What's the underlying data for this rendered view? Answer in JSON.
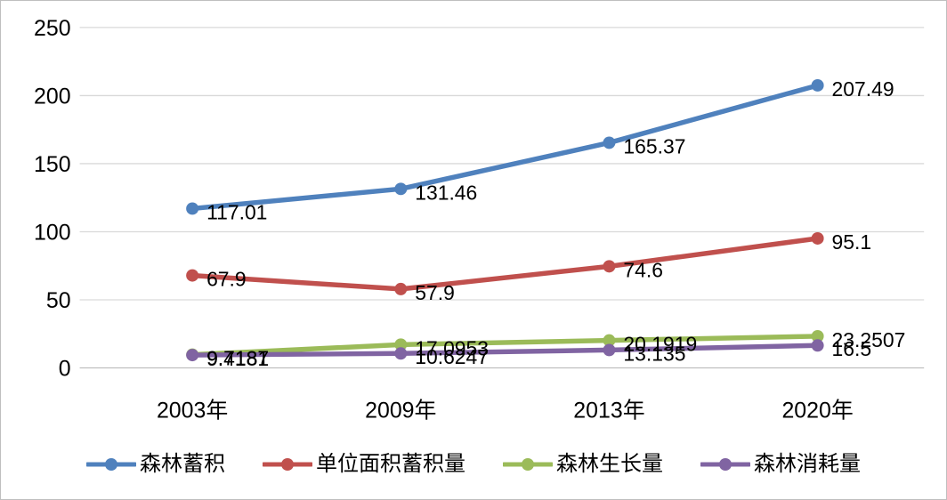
{
  "chart_data": {
    "type": "line",
    "title": "",
    "xlabel": "",
    "ylabel": "",
    "categories": [
      "2003年",
      "2009年",
      "2013年",
      "2020年"
    ],
    "series": [
      {
        "name": "森林蓄积",
        "color": "#4F81BD",
        "values": [
          117.01,
          131.46,
          165.37,
          207.49
        ],
        "labels": [
          "117.01",
          "131.46",
          "165.37",
          "207.49"
        ]
      },
      {
        "name": "单位面积蓄积量",
        "color": "#C0504D",
        "values": [
          67.9,
          57.9,
          74.6,
          95.1
        ],
        "labels": [
          "67.9",
          "57.9",
          "74.6",
          "95.1"
        ]
      },
      {
        "name": "森林生长量",
        "color": "#9BBB59",
        "values": [
          9.7187,
          17.0953,
          20.1919,
          23.2507
        ],
        "labels": [
          "9.7187",
          "17.0953",
          "20.1919",
          "23.2507"
        ]
      },
      {
        "name": "森林消耗量",
        "color": "#8064A2",
        "values": [
          9.4181,
          10.6247,
          13.135,
          16.5
        ],
        "labels": [
          "9.4181",
          "10.6247",
          "13.135",
          "16.5"
        ]
      }
    ],
    "y_axis": {
      "min": 0,
      "max": 250,
      "step": 50,
      "ticks": [
        "0",
        "50",
        "100",
        "150",
        "200",
        "250"
      ]
    },
    "grid": true,
    "legend_position": "bottom",
    "colors": {
      "gridline": "#D9D9D9",
      "axis_line": "#BFBFBF",
      "label_text": "#000000",
      "background": "#FFFFFF",
      "frame_border": "#BFBFBF"
    }
  }
}
